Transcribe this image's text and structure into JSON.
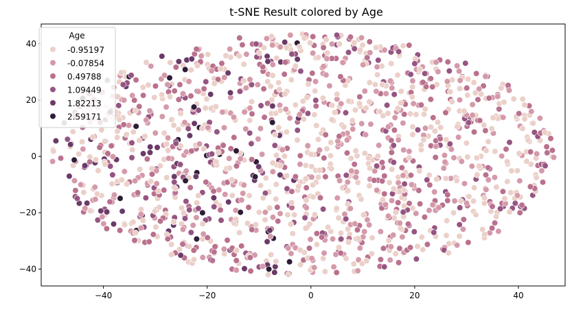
{
  "chart_data": {
    "type": "scatter",
    "title": "t-SNE Result colored by Age",
    "xlabel": "",
    "ylabel": "",
    "xlim": [
      -52,
      49
    ],
    "ylim": [
      -46,
      47
    ],
    "x_ticks": [
      -40,
      -20,
      0,
      20,
      40
    ],
    "y_ticks": [
      -40,
      -20,
      0,
      20,
      40
    ],
    "x_tick_labels": [
      "−40",
      "−20",
      "0",
      "20",
      "40"
    ],
    "y_tick_labels": [
      "−40",
      "−20",
      "0",
      "20",
      "40"
    ],
    "grid": false,
    "legend": {
      "title": "Age",
      "placement": "top-left",
      "entries": [
        {
          "label": "-0.95197",
          "color": "#ebd0c9"
        },
        {
          "label": "-0.07854",
          "color": "#d49aaa"
        },
        {
          "label": "0.49788",
          "color": "#b9718e"
        },
        {
          "label": "1.09449",
          "color": "#955582"
        },
        {
          "label": "1.82213",
          "color": "#6a3b68"
        },
        {
          "label": "2.59171",
          "color": "#2e1d36"
        }
      ]
    },
    "point_count": 1500,
    "distribution_note_hidden": null
  }
}
